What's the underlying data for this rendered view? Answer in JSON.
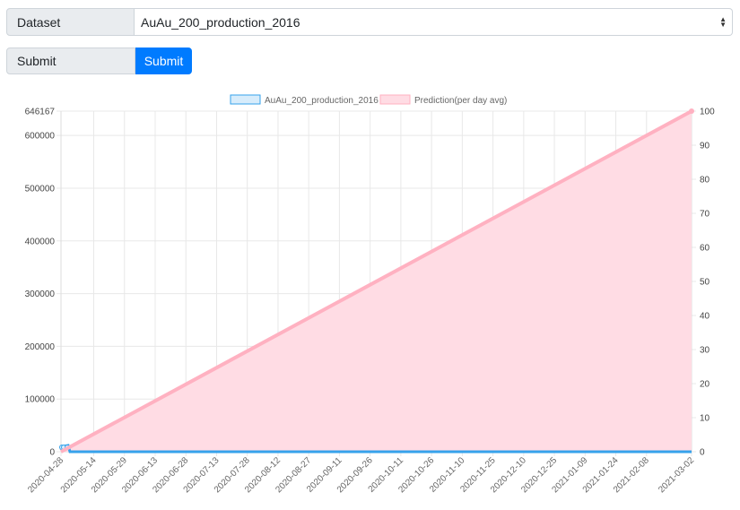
{
  "form": {
    "dataset_label": "Dataset",
    "dataset_value": "AuAu_200_production_2016",
    "submit_label": "Submit",
    "submit_button": "Submit"
  },
  "chart_data": {
    "type": "line",
    "grid": true,
    "legend_position": "top",
    "series": [
      {
        "name": "AuAu_200_production_2016",
        "axis": "left",
        "fill": true,
        "color": "#36a2eb",
        "fill_color": "#d7ecfb",
        "start_date": "2020-04-28",
        "end_date": "2021-03-02",
        "values_note": "early points near 0, then 0",
        "y_start": 7000,
        "y_end": 0
      },
      {
        "name": "Prediction(per day avg)",
        "axis": "right",
        "fill": true,
        "color": "#ffb1c1",
        "fill_color": "#ffdce4",
        "start_date": "2020-04-28",
        "end_date": "2021-03-02",
        "y_start": 0,
        "y_end": 100
      }
    ],
    "x_ticks": [
      "2020-04-28",
      "2020-05-14",
      "2020-05-29",
      "2020-06-13",
      "2020-06-28",
      "2020-07-13",
      "2020-07-28",
      "2020-08-12",
      "2020-08-27",
      "2020-09-11",
      "2020-09-26",
      "2020-10-11",
      "2020-10-26",
      "2020-11-10",
      "2020-11-25",
      "2020-12-10",
      "2020-12-25",
      "2021-01-09",
      "2021-01-24",
      "2021-02-08",
      "2021-03-02"
    ],
    "y_left_ticks": [
      "0",
      "100000",
      "200000",
      "300000",
      "400000",
      "500000",
      "600000",
      "646167"
    ],
    "y_left_values": [
      0,
      100000,
      200000,
      300000,
      400000,
      500000,
      600000,
      646167
    ],
    "ylim_left": [
      0,
      646167
    ],
    "y_right_ticks": [
      "0",
      "10",
      "20",
      "30",
      "40",
      "50",
      "60",
      "70",
      "80",
      "90",
      "100"
    ],
    "y_right_values": [
      0,
      10,
      20,
      30,
      40,
      50,
      60,
      70,
      80,
      90,
      100
    ],
    "ylim_right": [
      0,
      100
    ]
  }
}
